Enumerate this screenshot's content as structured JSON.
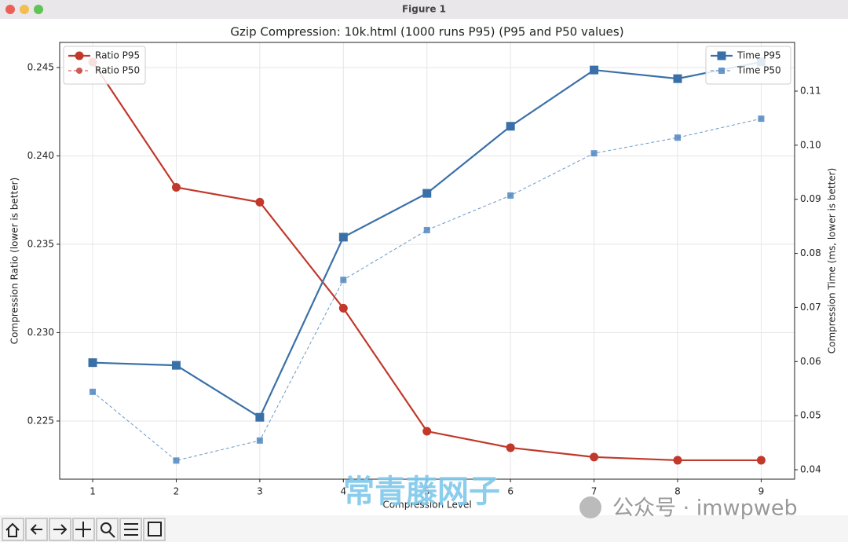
{
  "window": {
    "title": "Figure 1"
  },
  "chart_data": {
    "type": "line",
    "title": "Gzip Compression: 10k.html (1000 runs P95) (P95 and P50 values)",
    "xlabel": "Compression Level",
    "ylabel": "Compression Ratio (lower is better)",
    "y2label": "Compression Time (ms, lower is better)",
    "x": [
      1,
      2,
      3,
      4,
      5,
      6,
      7,
      8,
      9
    ],
    "xlim": [
      0.605,
      9.4
    ],
    "xticks": [
      1,
      2,
      3,
      4,
      5,
      6,
      7,
      8,
      9
    ],
    "ylim": [
      0.22171,
      0.24642
    ],
    "yticks": [
      0.225,
      {
        "value": 0.23,
        "label": "0.230"
      },
      0.235,
      {
        "value": 0.24,
        "label": "0.240"
      },
      0.245
    ],
    "y2lim": [
      0.03826,
      0.119
    ],
    "y2ticks": [
      0.04,
      0.05,
      0.06,
      0.07,
      0.08,
      0.09,
      {
        "value": 0.1,
        "label": "0.10"
      },
      0.11
    ],
    "grid": true,
    "legend_y": "upper left",
    "legend_y2": "upper right",
    "series": [
      {
        "name": "Ratio P50",
        "color": "#c8403a",
        "axis": "y",
        "marker": "circle",
        "linestyle": "dashed",
        "values": [
          0.24531,
          0.23822,
          0.23738,
          0.23138,
          0.22442,
          0.22349,
          0.22296,
          0.22278,
          0.22278
        ]
      },
      {
        "name": "Ratio P95",
        "color": "#c0392b",
        "axis": "y",
        "marker": "circle",
        "linestyle": "solid",
        "values": [
          0.24531,
          0.23822,
          0.23738,
          0.23138,
          0.22442,
          0.22349,
          0.22296,
          0.22278,
          0.22278
        ]
      },
      {
        "name": "Time P50",
        "color": "#4f86bf",
        "axis": "y2",
        "marker": "square",
        "linestyle": "dashed",
        "values": [
          0.0544,
          0.0417,
          0.0454,
          0.0751,
          0.0843,
          0.0907,
          0.0985,
          0.1014,
          0.1049
        ]
      },
      {
        "name": "Time P95",
        "color": "#3a70a8",
        "axis": "y2",
        "marker": "square",
        "linestyle": "solid",
        "values": [
          0.0598,
          0.0593,
          0.0497,
          0.083,
          0.0911,
          0.1035,
          0.1139,
          0.1123,
          0.1154
        ]
      }
    ]
  },
  "watermarks": [
    "常青藤网子",
    "公众号 · imwpweb"
  ]
}
